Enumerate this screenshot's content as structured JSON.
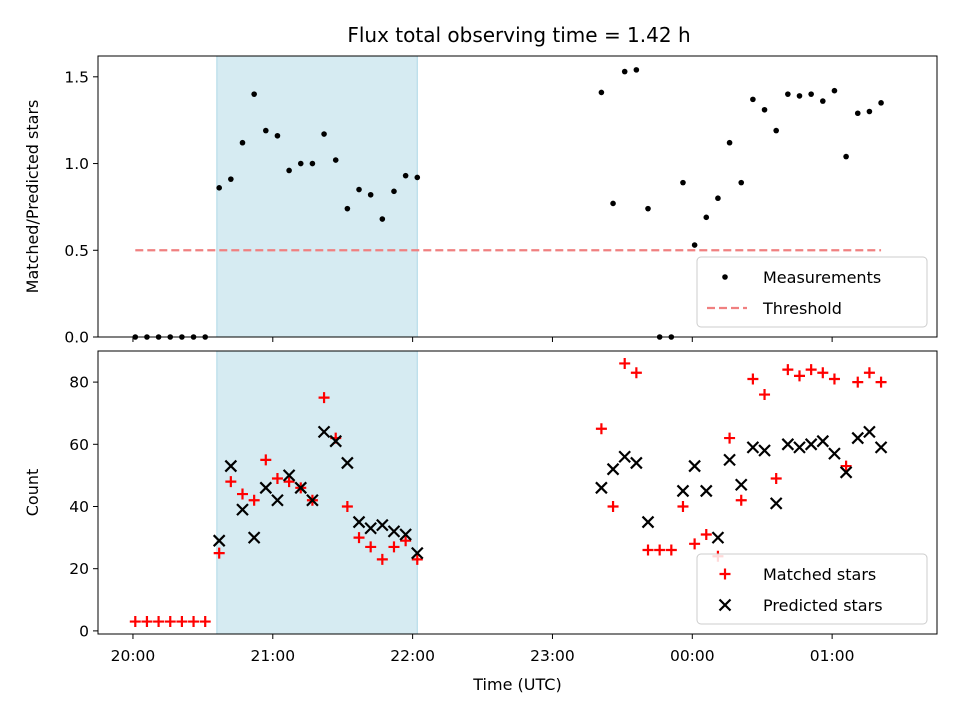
{
  "chart_data": [
    {
      "type": "scatter",
      "title": "Flux total observing time = 1.42 h",
      "ylabel": "Matched/Predicted stars",
      "ylim": [
        0,
        1.62
      ],
      "yticks": [
        0,
        0.5,
        1.0,
        1.5
      ],
      "ytick_labels": [
        "0.0",
        "0.5",
        "1.0",
        "1.5"
      ],
      "highlight_span": [
        "20:36",
        "22:02"
      ],
      "highlight_color": "#add8e6",
      "legend_position": "lower-right",
      "series": [
        {
          "name": "Measurements",
          "color": "#000000",
          "marker": "dot",
          "points": [
            [
              "20:01",
              0.0
            ],
            [
              "20:06",
              0.0
            ],
            [
              "20:11",
              0.0
            ],
            [
              "20:16",
              0.0
            ],
            [
              "20:21",
              0.0
            ],
            [
              "20:26",
              0.0
            ],
            [
              "20:31",
              0.0
            ],
            [
              "20:37",
              0.86
            ],
            [
              "20:42",
              0.91
            ],
            [
              "20:47",
              1.12
            ],
            [
              "20:52",
              1.4
            ],
            [
              "20:57",
              1.19
            ],
            [
              "21:02",
              1.16
            ],
            [
              "21:07",
              0.96
            ],
            [
              "21:12",
              1.0
            ],
            [
              "21:17",
              1.0
            ],
            [
              "21:22",
              1.17
            ],
            [
              "21:27",
              1.02
            ],
            [
              "21:32",
              0.74
            ],
            [
              "21:37",
              0.85
            ],
            [
              "21:42",
              0.82
            ],
            [
              "21:47",
              0.68
            ],
            [
              "21:52",
              0.84
            ],
            [
              "21:57",
              0.93
            ],
            [
              "22:02",
              0.92
            ],
            [
              "23:21",
              1.41
            ],
            [
              "23:26",
              0.77
            ],
            [
              "23:31",
              1.53
            ],
            [
              "23:36",
              1.54
            ],
            [
              "23:41",
              0.74
            ],
            [
              "23:46",
              0.0
            ],
            [
              "23:51",
              0.0
            ],
            [
              "23:56",
              0.89
            ],
            [
              "00:01",
              0.53
            ],
            [
              "00:06",
              0.69
            ],
            [
              "00:11",
              0.8
            ],
            [
              "00:16",
              1.12
            ],
            [
              "00:21",
              0.89
            ],
            [
              "00:26",
              1.37
            ],
            [
              "00:31",
              1.31
            ],
            [
              "00:36",
              1.19
            ],
            [
              "00:41",
              1.4
            ],
            [
              "00:46",
              1.39
            ],
            [
              "00:51",
              1.4
            ],
            [
              "00:56",
              1.36
            ],
            [
              "01:01",
              1.42
            ],
            [
              "01:06",
              1.04
            ],
            [
              "01:11",
              1.29
            ],
            [
              "01:16",
              1.3
            ],
            [
              "01:21",
              1.35
            ]
          ]
        },
        {
          "name": "Threshold",
          "color": "#f08080",
          "line_style": "dashed",
          "points": [
            [
              "20:01",
              0.5
            ],
            [
              "01:21",
              0.5
            ]
          ]
        }
      ]
    },
    {
      "type": "scatter",
      "xlabel": "Time (UTC)",
      "ylabel": "Count",
      "ylim": [
        -1,
        90
      ],
      "yticks": [
        0,
        20,
        40,
        60,
        80
      ],
      "ytick_labels": [
        "0",
        "20",
        "40",
        "60",
        "80"
      ],
      "xticks": [
        "20:00",
        "21:00",
        "22:00",
        "23:00",
        "00:00",
        "01:00"
      ],
      "xtick_labels": [
        "20:00",
        "21:00",
        "22:00",
        "23:00",
        "00:00",
        "01:00"
      ],
      "highlight_span": [
        "20:36",
        "22:02"
      ],
      "highlight_color": "#add8e6",
      "legend_position": "lower-right",
      "series": [
        {
          "name": "Matched stars",
          "color": "#ff0000",
          "marker": "plus",
          "points": [
            [
              "20:01",
              3
            ],
            [
              "20:06",
              3
            ],
            [
              "20:11",
              3
            ],
            [
              "20:16",
              3
            ],
            [
              "20:21",
              3
            ],
            [
              "20:26",
              3
            ],
            [
              "20:31",
              3
            ],
            [
              "20:37",
              25
            ],
            [
              "20:42",
              48
            ],
            [
              "20:47",
              44
            ],
            [
              "20:52",
              42
            ],
            [
              "20:57",
              55
            ],
            [
              "21:02",
              49
            ],
            [
              "21:07",
              48
            ],
            [
              "21:12",
              46
            ],
            [
              "21:17",
              42
            ],
            [
              "21:22",
              75
            ],
            [
              "21:27",
              62
            ],
            [
              "21:32",
              40
            ],
            [
              "21:37",
              30
            ],
            [
              "21:42",
              27
            ],
            [
              "21:47",
              23
            ],
            [
              "21:52",
              27
            ],
            [
              "21:57",
              29
            ],
            [
              "22:02",
              23
            ],
            [
              "23:21",
              65
            ],
            [
              "23:26",
              40
            ],
            [
              "23:31",
              86
            ],
            [
              "23:36",
              83
            ],
            [
              "23:41",
              26
            ],
            [
              "23:46",
              26
            ],
            [
              "23:51",
              26
            ],
            [
              "23:56",
              40
            ],
            [
              "00:01",
              28
            ],
            [
              "00:06",
              31
            ],
            [
              "00:11",
              24
            ],
            [
              "00:16",
              62
            ],
            [
              "00:21",
              42
            ],
            [
              "00:26",
              81
            ],
            [
              "00:31",
              76
            ],
            [
              "00:36",
              49
            ],
            [
              "00:41",
              84
            ],
            [
              "00:46",
              82
            ],
            [
              "00:51",
              84
            ],
            [
              "00:56",
              83
            ],
            [
              "01:01",
              81
            ],
            [
              "01:06",
              53
            ],
            [
              "01:11",
              80
            ],
            [
              "01:16",
              83
            ],
            [
              "01:21",
              80
            ]
          ]
        },
        {
          "name": "Predicted stars",
          "color": "#000000",
          "marker": "x",
          "points": [
            [
              "20:37",
              29
            ],
            [
              "20:42",
              53
            ],
            [
              "20:47",
              39
            ],
            [
              "20:52",
              30
            ],
            [
              "20:57",
              46
            ],
            [
              "21:02",
              42
            ],
            [
              "21:07",
              50
            ],
            [
              "21:12",
              46
            ],
            [
              "21:17",
              42
            ],
            [
              "21:22",
              64
            ],
            [
              "21:27",
              61
            ],
            [
              "21:32",
              54
            ],
            [
              "21:37",
              35
            ],
            [
              "21:42",
              33
            ],
            [
              "21:47",
              34
            ],
            [
              "21:52",
              32
            ],
            [
              "21:57",
              31
            ],
            [
              "22:02",
              25
            ],
            [
              "23:21",
              46
            ],
            [
              "23:26",
              52
            ],
            [
              "23:31",
              56
            ],
            [
              "23:36",
              54
            ],
            [
              "23:41",
              35
            ],
            [
              "23:56",
              45
            ],
            [
              "00:01",
              53
            ],
            [
              "00:06",
              45
            ],
            [
              "00:11",
              30
            ],
            [
              "00:16",
              55
            ],
            [
              "00:21",
              47
            ],
            [
              "00:26",
              59
            ],
            [
              "00:31",
              58
            ],
            [
              "00:36",
              41
            ],
            [
              "00:41",
              60
            ],
            [
              "00:46",
              59
            ],
            [
              "00:51",
              60
            ],
            [
              "00:56",
              61
            ],
            [
              "01:01",
              57
            ],
            [
              "01:06",
              51
            ],
            [
              "01:11",
              62
            ],
            [
              "01:16",
              64
            ],
            [
              "01:21",
              59
            ]
          ]
        }
      ]
    }
  ]
}
